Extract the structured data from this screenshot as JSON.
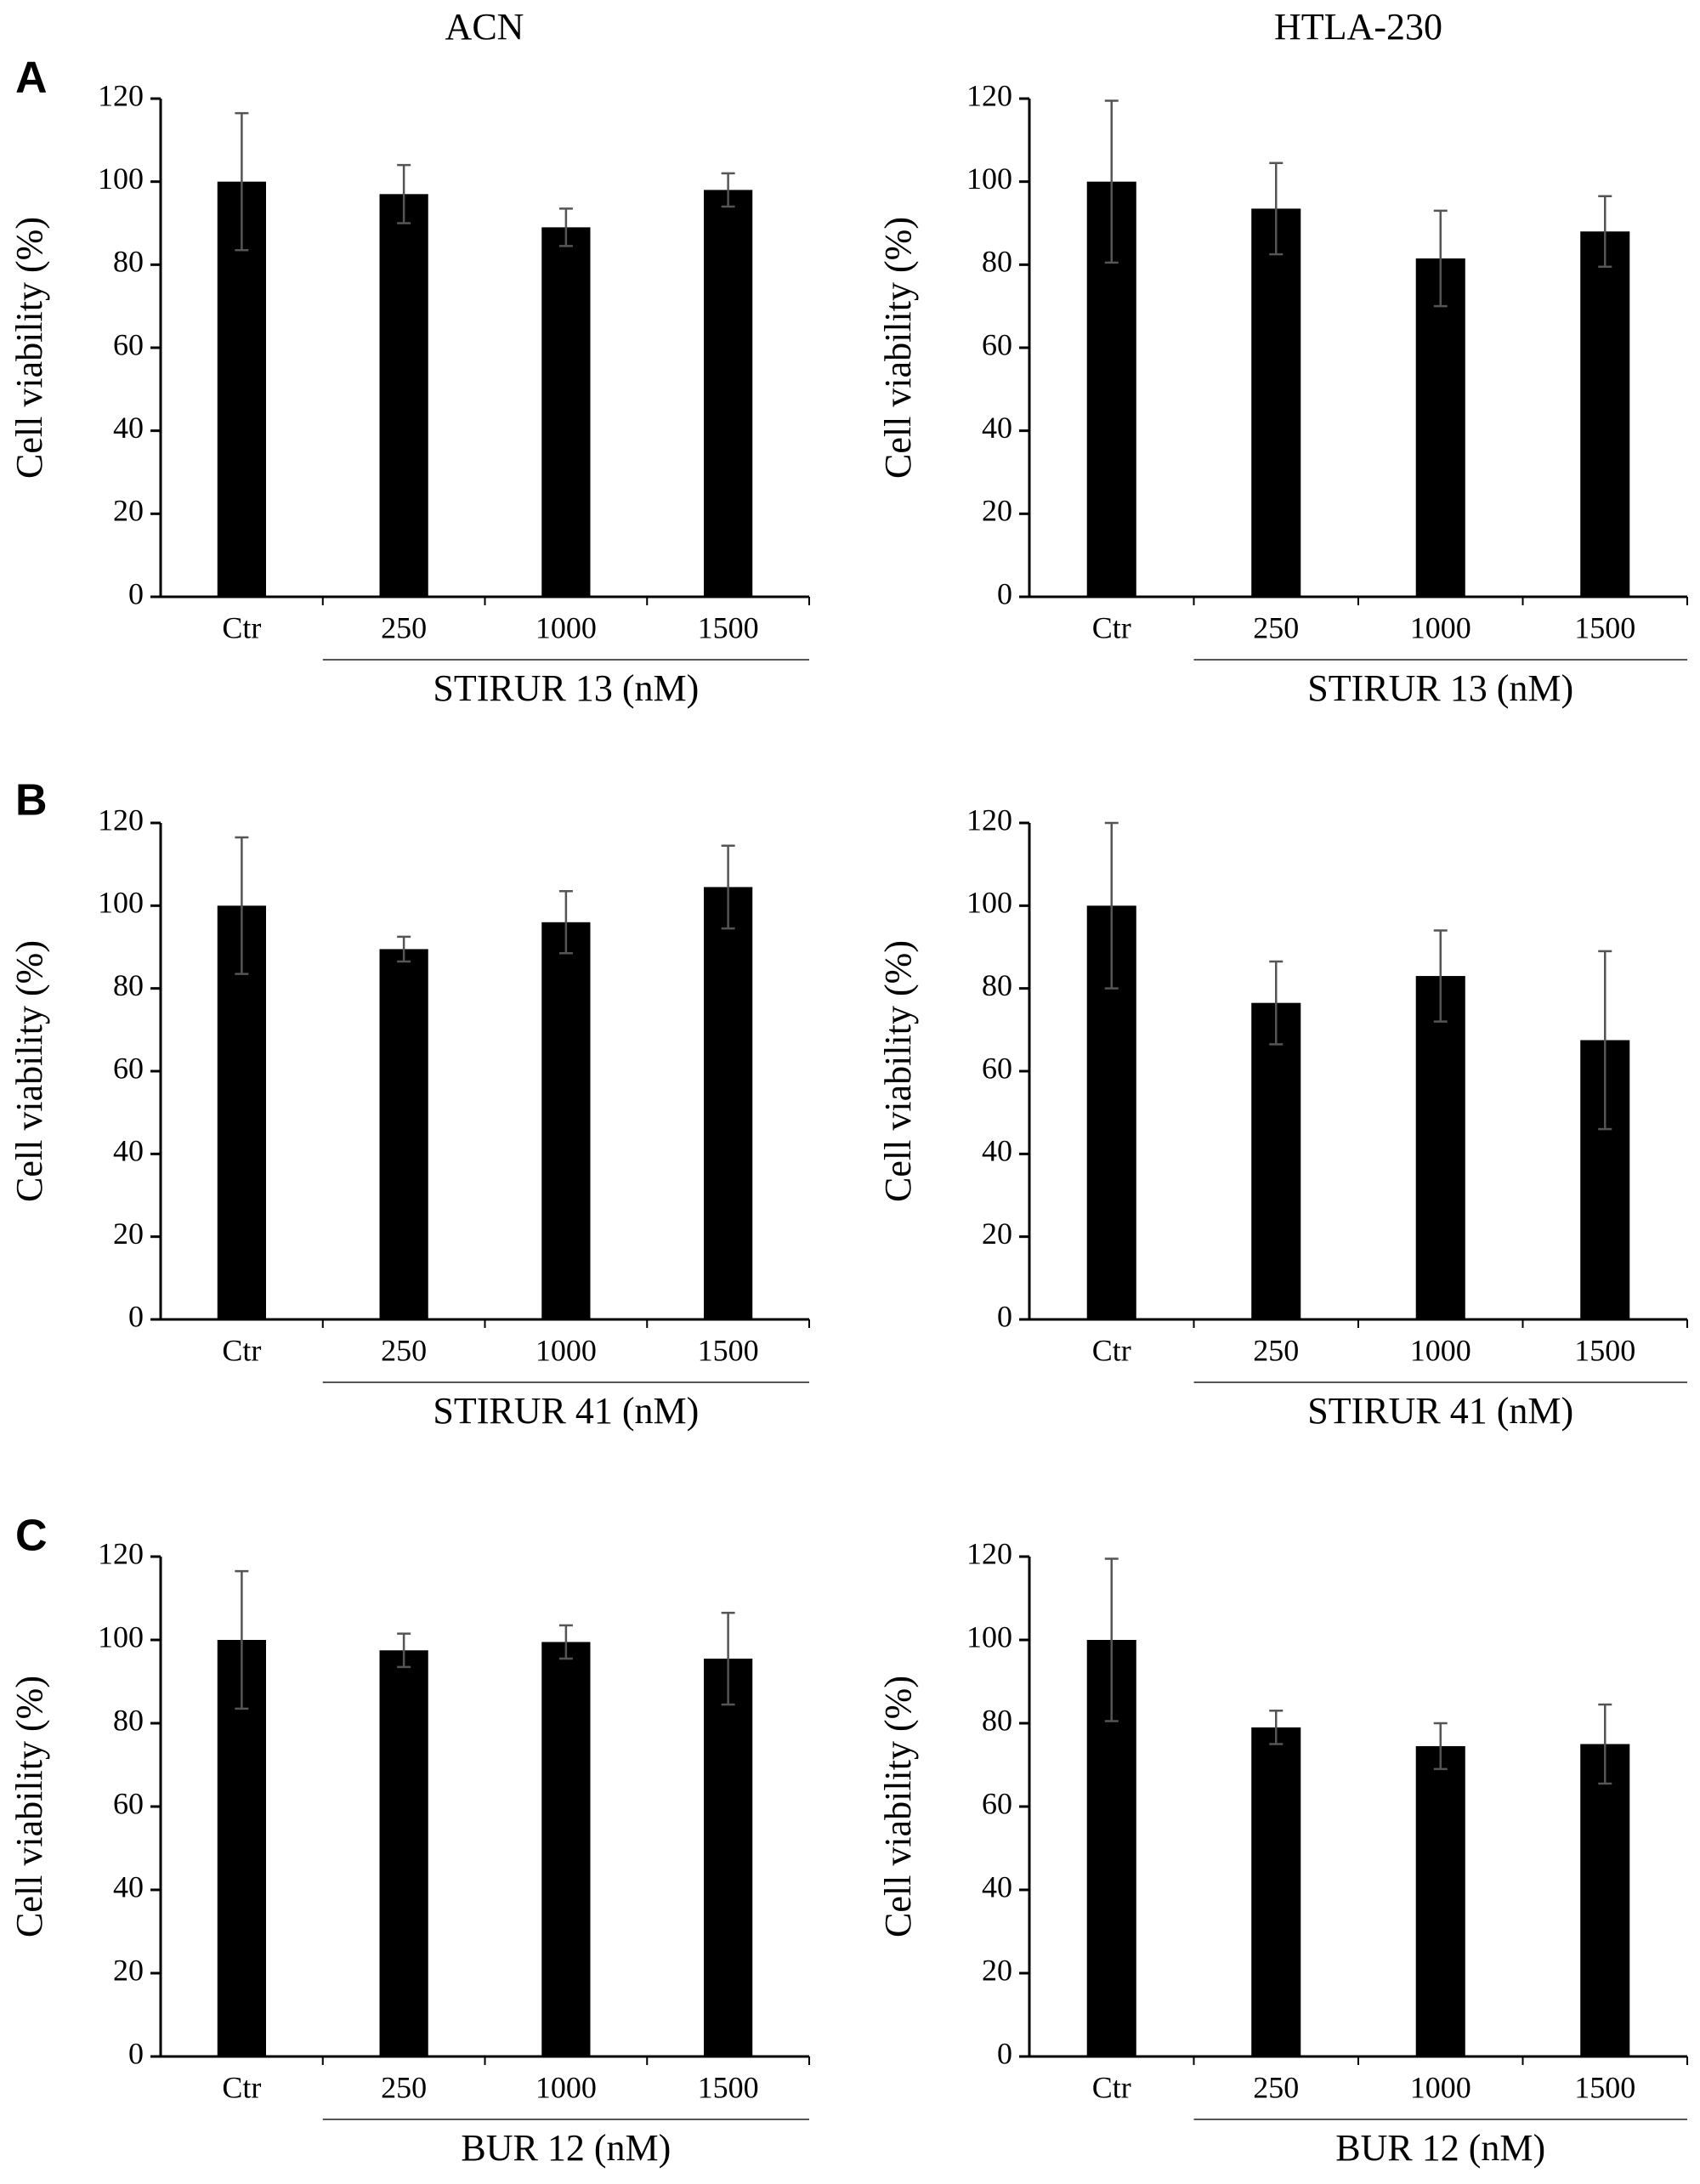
{
  "figure": {
    "columns": [
      "ACN",
      "HTLA-230"
    ],
    "panels": [
      "A",
      "B",
      "C"
    ]
  },
  "chart_data": [
    {
      "type": "bar",
      "categories": [
        "Ctr",
        "250",
        "1000",
        "1500"
      ],
      "values": [
        100,
        97,
        89,
        98
      ],
      "errors": [
        16.5,
        7,
        4.5,
        4
      ],
      "color": "#000000",
      "ylabel": "Cell viability (%)",
      "xlabel": "STIRUR 13 (nM)",
      "ylim": [
        0,
        120
      ],
      "yticks": [
        0,
        20,
        40,
        60,
        80,
        100,
        120
      ]
    },
    {
      "type": "bar",
      "categories": [
        "Ctr",
        "250",
        "1000",
        "1500"
      ],
      "values": [
        100,
        93.5,
        81.5,
        88
      ],
      "errors": [
        19.5,
        11,
        11.5,
        8.5
      ],
      "color": "#000000",
      "ylabel": "Cell viability (%)",
      "xlabel": "STIRUR 13 (nM)",
      "ylim": [
        0,
        120
      ],
      "yticks": [
        0,
        20,
        40,
        60,
        80,
        100,
        120
      ]
    },
    {
      "type": "bar",
      "categories": [
        "Ctr",
        "250",
        "1000",
        "1500"
      ],
      "values": [
        100,
        89.5,
        96,
        104.5
      ],
      "errors": [
        16.5,
        3,
        7.5,
        10
      ],
      "color": "#000000",
      "ylabel": "Cell viability (%)",
      "xlabel": "STIRUR 41 (nM)",
      "ylim": [
        0,
        120
      ],
      "yticks": [
        0,
        20,
        40,
        60,
        80,
        100,
        120
      ]
    },
    {
      "type": "bar",
      "categories": [
        "Ctr",
        "250",
        "1000",
        "1500"
      ],
      "values": [
        100,
        76.5,
        83,
        67.5
      ],
      "errors": [
        20,
        10,
        11,
        21.5
      ],
      "color": "#000000",
      "ylabel": "Cell viability (%)",
      "xlabel": "STIRUR 41 (nM)",
      "ylim": [
        0,
        120
      ],
      "yticks": [
        0,
        20,
        40,
        60,
        80,
        100,
        120
      ]
    },
    {
      "type": "bar",
      "categories": [
        "Ctr",
        "250",
        "1000",
        "1500"
      ],
      "values": [
        100,
        97.5,
        99.5,
        95.5
      ],
      "errors": [
        16.5,
        4,
        4,
        11
      ],
      "color": "#000000",
      "ylabel": "Cell viability (%)",
      "xlabel": "BUR 12 (nM)",
      "ylim": [
        0,
        120
      ],
      "yticks": [
        0,
        20,
        40,
        60,
        80,
        100,
        120
      ]
    },
    {
      "type": "bar",
      "categories": [
        "Ctr",
        "250",
        "1000",
        "1500"
      ],
      "values": [
        100,
        79,
        74.5,
        75
      ],
      "errors": [
        19.5,
        4,
        5.5,
        9.5
      ],
      "color": "#000000",
      "ylabel": "Cell viability (%)",
      "xlabel": "BUR 12 (nM)",
      "ylim": [
        0,
        120
      ],
      "yticks": [
        0,
        20,
        40,
        60,
        80,
        100,
        120
      ]
    }
  ]
}
